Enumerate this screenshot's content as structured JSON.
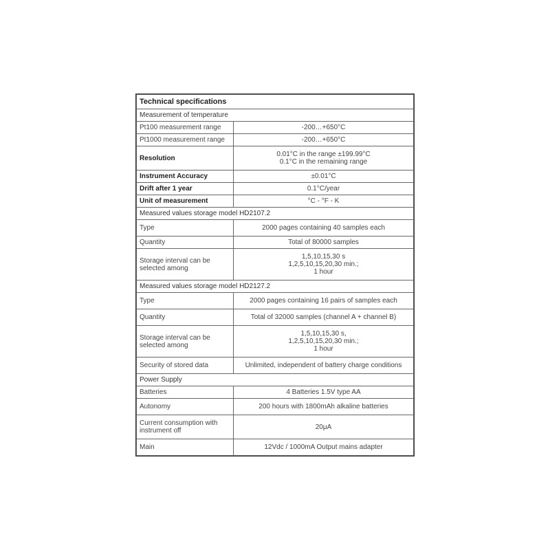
{
  "table": {
    "border_color": "#666666",
    "text_color": "#444444",
    "font_size": 10,
    "header_font_size": 11,
    "sections": [
      {
        "title": "Technical specifications",
        "is_main_header": true
      },
      {
        "title": "Measurement of temperature",
        "rows": [
          {
            "label": "Pt100 measurement range",
            "value": "-200…+650°C",
            "bold": false,
            "tall": false
          },
          {
            "label": "Pt1000 measurement range",
            "value": "-200…+650°C",
            "bold": false,
            "tall": false
          },
          {
            "label": "Resolution",
            "value": "0.01°C in the range ±199.99°C\n0.1°C in the remaining range",
            "bold": true,
            "tall": true
          },
          {
            "label": "Instrument Accuracy",
            "value": "±0.01°C",
            "bold": true,
            "tall": false
          },
          {
            "label": "Drift after 1 year",
            "value": "0.1°C/year",
            "bold": true,
            "tall": false
          },
          {
            "label": "Unit of measurement",
            "value": "°C - °F - K",
            "bold": true,
            "tall": false
          }
        ]
      },
      {
        "title": "Measured values storage model HD2107.2",
        "rows": [
          {
            "label": "Type",
            "value": "2000 pages containing 40 samples each",
            "bold": false,
            "tall": true
          },
          {
            "label": "Quantity",
            "value": "Total of 80000 samples",
            "bold": false,
            "tall": false
          },
          {
            "label": "Storage interval can be selected among",
            "value": "1,5,10,15,30 s\n1,2,5,10,15,20,30 min.;\n1 hour",
            "bold": false,
            "tall": true
          }
        ]
      },
      {
        "title": "Measured values storage model HD2127.2",
        "rows": [
          {
            "label": "Type",
            "value": "2000 pages containing 16 pairs of samples each",
            "bold": false,
            "tall": true
          },
          {
            "label": "Quantity",
            "value": "Total of 32000 samples (channel A + channel B)",
            "bold": false,
            "tall": true
          },
          {
            "label": "Storage interval can be selected among",
            "value": "1,5,10,15,30 s,\n1,2,5,10,15,20,30 min.;\n1 hour",
            "bold": false,
            "tall": true
          },
          {
            "label": "Security of stored data",
            "value": "Unlimited, independent of battery charge conditions",
            "bold": false,
            "tall": true
          }
        ]
      },
      {
        "title": "Power Supply",
        "rows": [
          {
            "label": "Batteries",
            "value": "4 Batteries 1.5V type AA",
            "bold": false,
            "tall": false
          },
          {
            "label": "Autonomy",
            "value": "200 hours with 1800mAh alkaline batteries",
            "bold": false,
            "tall": true
          },
          {
            "label": "Current consumption with instrument off",
            "value": "20μA",
            "bold": false,
            "tall": true
          },
          {
            "label": "Main",
            "value": "12Vdc / 1000mA Output mains adapter",
            "bold": false,
            "tall": true
          }
        ]
      }
    ]
  }
}
